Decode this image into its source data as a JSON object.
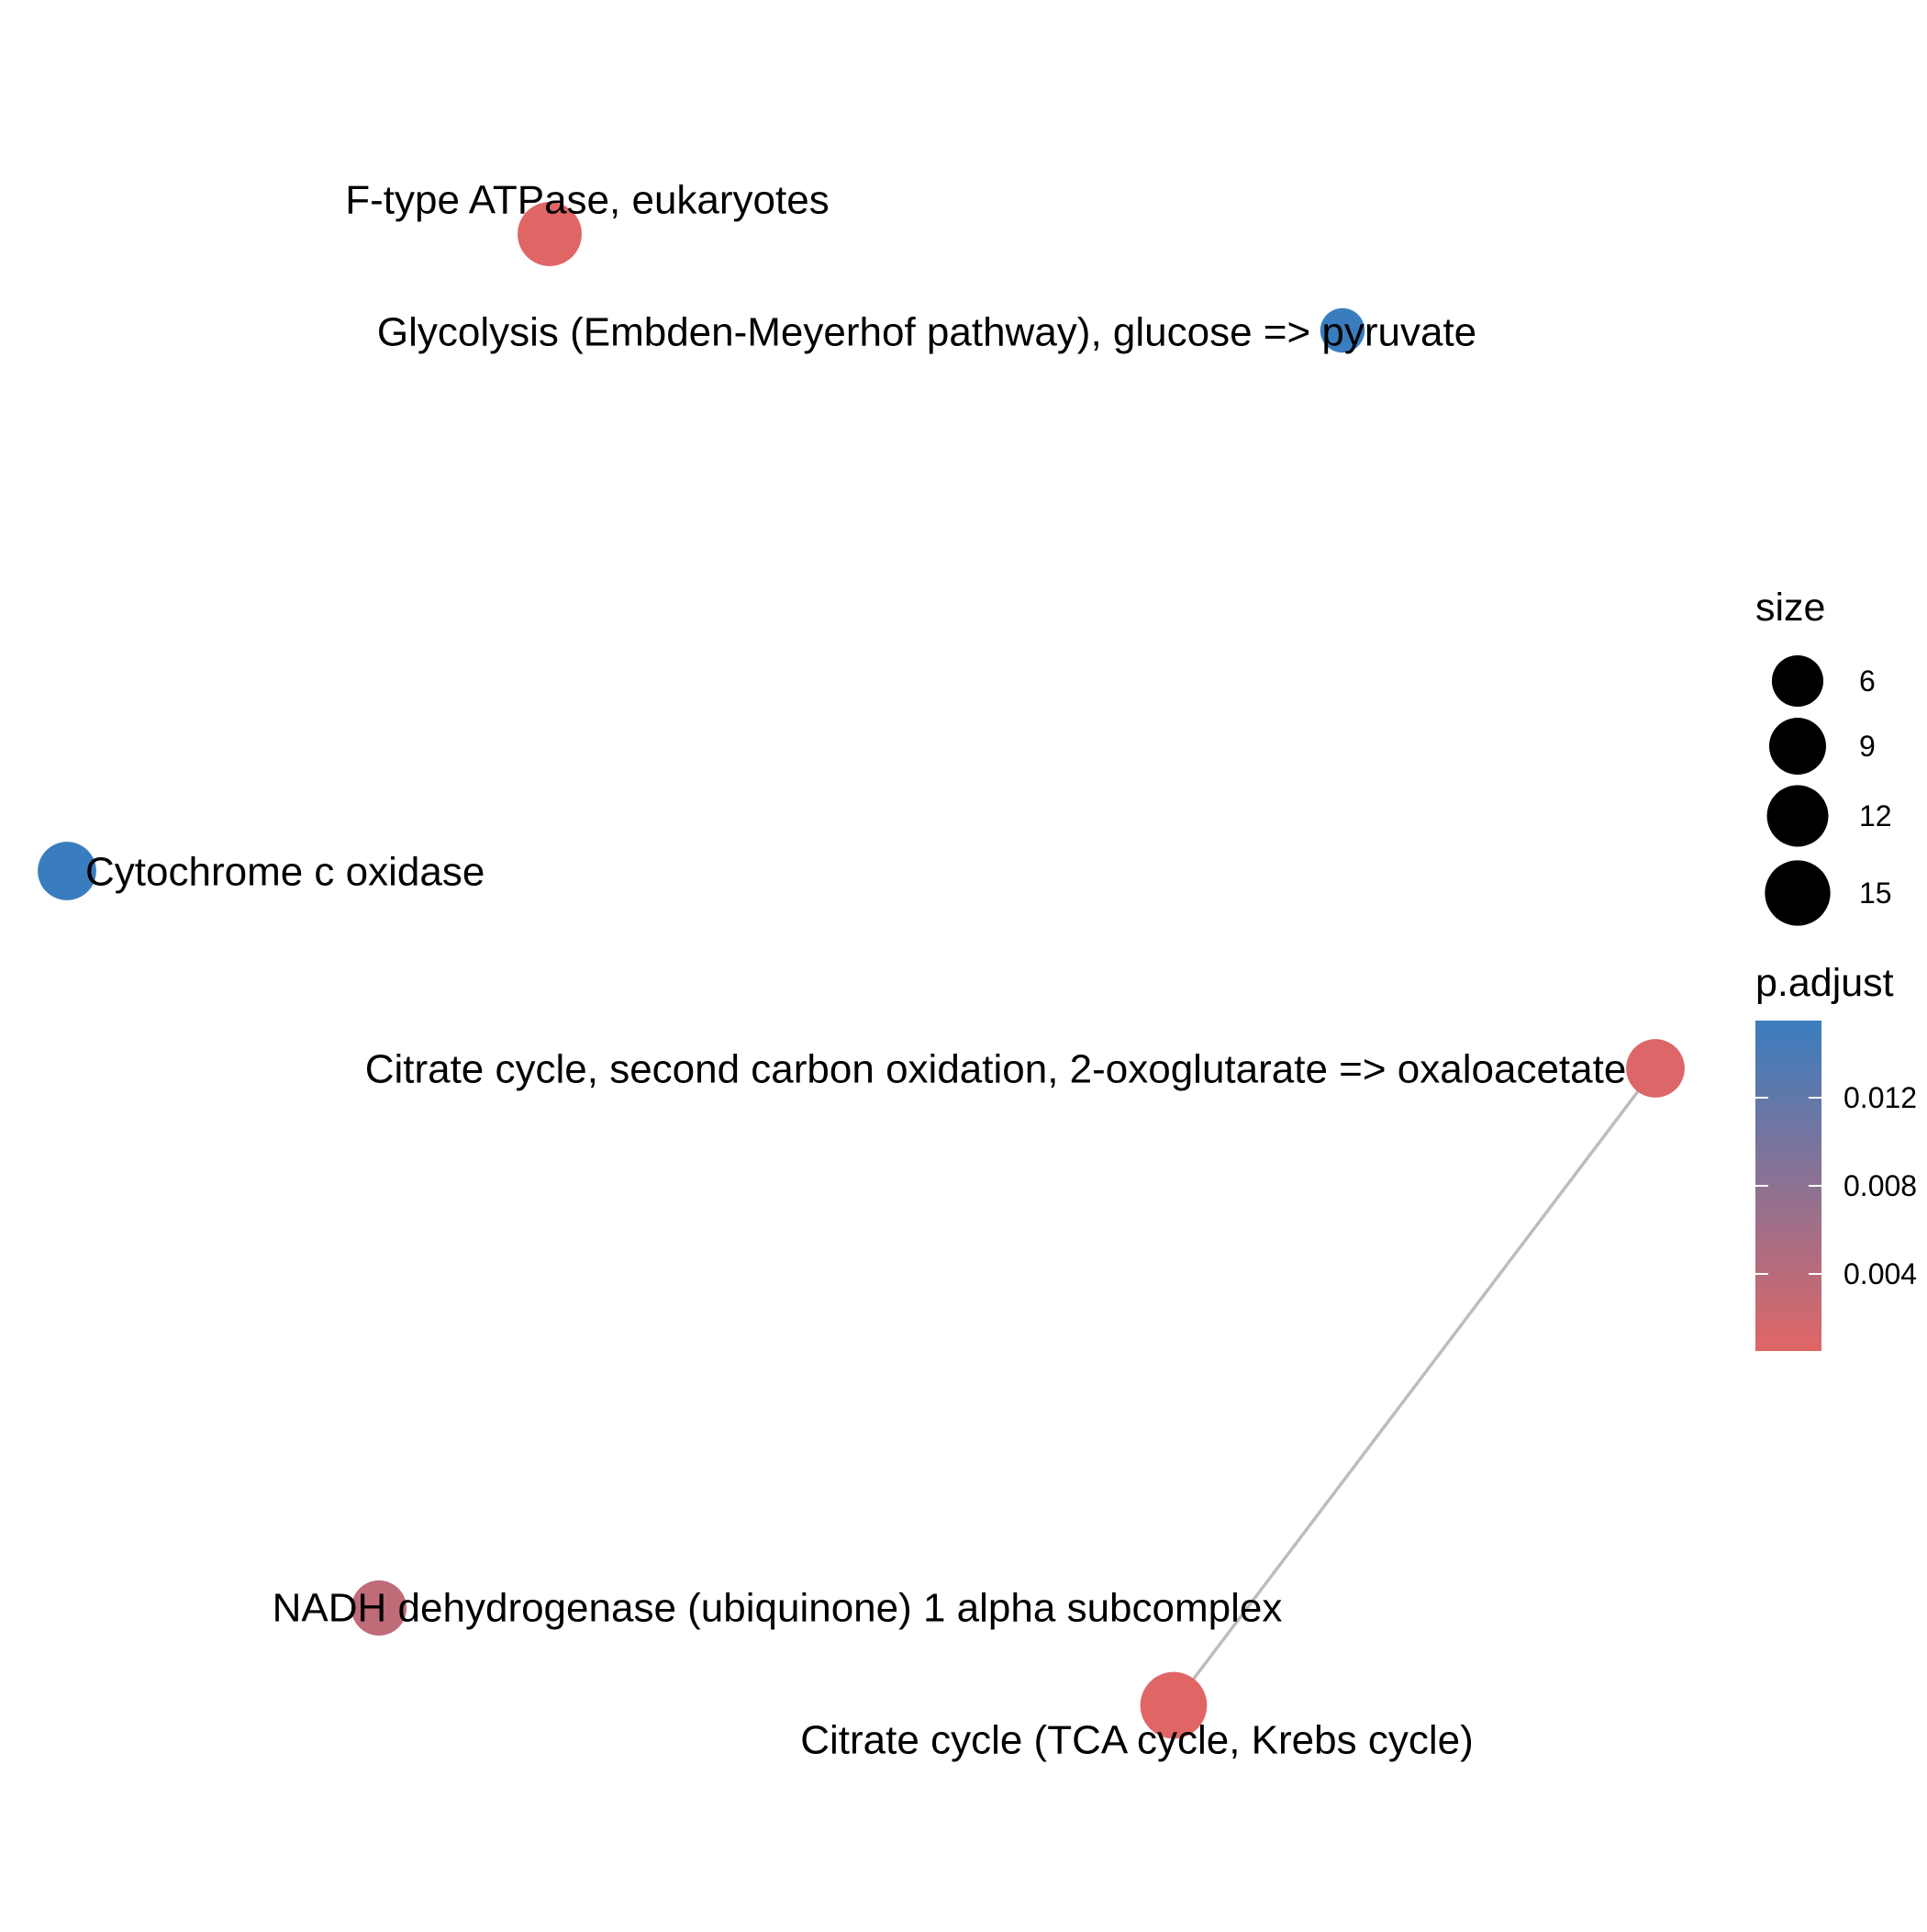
{
  "chart_data": {
    "type": "network",
    "nodes": [
      {
        "id": "ftype",
        "label": "F-type ATPase, eukaryotes",
        "size": 14,
        "p_adjust": 0.0005
      },
      {
        "id": "glyco",
        "label": "Glycolysis (Embden-Meyerhof pathway), glucose => pyruvate",
        "size": 3,
        "p_adjust": 0.0155
      },
      {
        "id": "cox",
        "label": "Cytochrome c oxidase",
        "size": 10,
        "p_adjust": 0.0155
      },
      {
        "id": "citrate2",
        "label": "Citrate cycle, second carbon oxidation, 2-oxoglutarate => oxaloacetate",
        "size": 10,
        "p_adjust": 0.0008
      },
      {
        "id": "nadh",
        "label": "NADH dehydrogenase (ubiquinone) 1 alpha subcomplex",
        "size": 8,
        "p_adjust": 0.0035
      },
      {
        "id": "tca",
        "label": "Citrate cycle (TCA cycle, Krebs cycle)",
        "size": 16,
        "p_adjust": 0.0005
      }
    ],
    "edges": [
      {
        "source": "citrate2",
        "target": "tca"
      }
    ],
    "size_legend": {
      "title": "size",
      "breaks": [
        6,
        9,
        12,
        15
      ]
    },
    "color_legend": {
      "title": "p.adjust",
      "low_color": "#E06666",
      "high_color": "#3A7DBF",
      "range": [
        0.0005,
        0.0155
      ],
      "breaks": [
        0.004,
        0.008,
        0.012
      ],
      "break_labels": [
        "0.004",
        "0.008",
        "0.012"
      ]
    },
    "edge_color": "#BDBDBD",
    "grid": false
  }
}
